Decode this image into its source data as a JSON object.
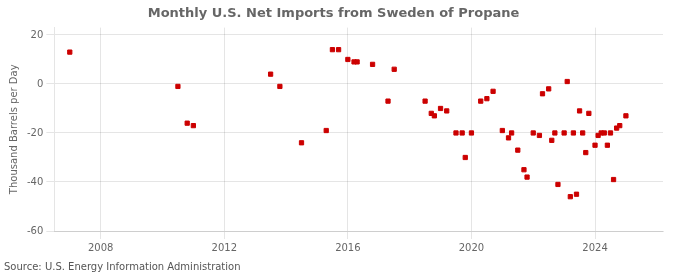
{
  "chart_data": {
    "type": "scatter",
    "title": "Monthly U.S. Net Imports from Sweden of Propane",
    "ylabel": "Thousand Barrels per Day",
    "annotations": [
      "Source: U.S. Energy Information Administration"
    ],
    "x": [
      2007.0,
      2010.5,
      2010.8,
      2011.0,
      2013.5,
      2013.8,
      2014.5,
      2015.3,
      2015.5,
      2015.7,
      2016.0,
      2016.2,
      2016.3,
      2016.8,
      2017.3,
      2017.5,
      2018.5,
      2018.7,
      2018.8,
      2019.0,
      2019.2,
      2019.5,
      2019.7,
      2019.8,
      2020.0,
      2020.3,
      2020.5,
      2020.7,
      2021.0,
      2021.2,
      2021.3,
      2021.5,
      2021.7,
      2021.8,
      2022.0,
      2022.2,
      2022.3,
      2022.5,
      2022.6,
      2022.7,
      2022.8,
      2023.0,
      2023.1,
      2023.2,
      2023.3,
      2023.4,
      2023.5,
      2023.6,
      2023.7,
      2023.8,
      2024.0,
      2024.1,
      2024.2,
      2024.3,
      2024.4,
      2024.5,
      2024.6,
      2024.7,
      2024.8,
      2025.0
    ],
    "values": [
      13,
      -1,
      -16,
      -17,
      4,
      -1,
      -24,
      -19,
      14,
      14,
      10,
      9,
      9,
      8,
      -7,
      6,
      -7,
      -12,
      -13,
      -10,
      -11,
      -20,
      -20,
      -30,
      -20,
      -7,
      -6,
      -3,
      -19,
      -22,
      -20,
      -27,
      -35,
      -38,
      -20,
      -21,
      -4,
      -2,
      -23,
      -20,
      -41,
      -20,
      1,
      -46,
      -20,
      -45,
      -11,
      -20,
      -28,
      -12,
      -25,
      -21,
      -20,
      -20,
      -25,
      -20,
      -39,
      -18,
      -17,
      -13
    ],
    "color": "#cc0000",
    "marker": "square",
    "xlim": [
      2006.5,
      2026.2
    ],
    "ylim": [
      -60,
      23
    ],
    "xticks": [
      2008,
      2012,
      2016,
      2020,
      2024
    ],
    "yticks": [
      -60,
      -40,
      -20,
      0,
      20
    ],
    "grid": true
  }
}
